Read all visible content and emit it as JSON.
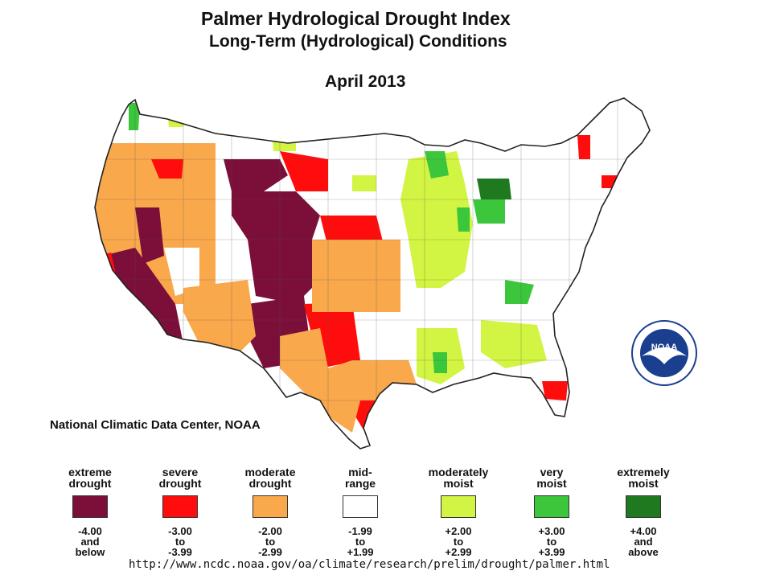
{
  "title": "Palmer Hydrological Drought Index",
  "subtitle": "Long-Term (Hydrological) Conditions",
  "period": "April 2013",
  "credit": "National Climatic Data Center, NOAA",
  "logo": {
    "text": "NOAA",
    "icon": "noaa-logo"
  },
  "url": "http://www.ncdc.noaa.gov/oa/climate/research/prelim/drought/palmer.html",
  "colors": {
    "extreme_drought": "#7b0f3a",
    "severe_drought": "#ff0d0d",
    "moderate_drought": "#f9a84b",
    "mid_range": "#ffffff",
    "moderately_moist": "#d2f442",
    "very_moist": "#3cc63c",
    "extremely_moist": "#1f7a1f"
  },
  "legend": [
    {
      "label": "extreme\ndrought",
      "range": "-4.00\nand\nbelow",
      "color": "#7b0f3a"
    },
    {
      "label": "severe\ndrought",
      "range": "-3.00\nto\n-3.99",
      "color": "#ff0d0d"
    },
    {
      "label": "moderate\ndrought",
      "range": "-2.00\nto\n-2.99",
      "color": "#f9a84b"
    },
    {
      "label": "mid-\nrange",
      "range": "-1.99\nto\n+1.99",
      "color": "#ffffff"
    },
    {
      "label": "moderately\nmoist",
      "range": "+2.00\nto\n+2.99",
      "color": "#d2f442"
    },
    {
      "label": "very\nmoist",
      "range": "+3.00\nto\n+3.99",
      "color": "#3cc63c"
    },
    {
      "label": "extremely\nmoist",
      "range": "+4.00\nand\nabove",
      "color": "#1f7a1f"
    }
  ]
}
